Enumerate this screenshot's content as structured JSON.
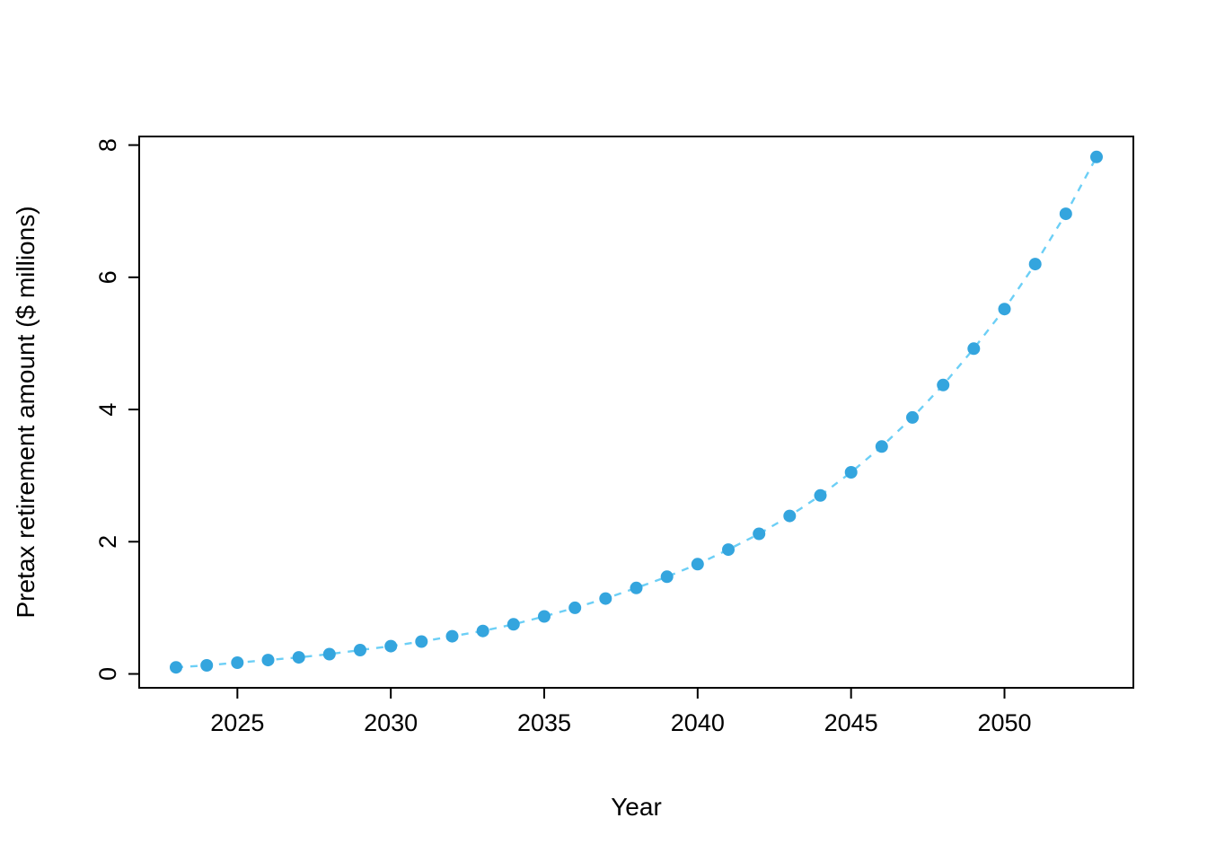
{
  "chart_data": {
    "type": "scatter",
    "title": "",
    "xlabel": "Year",
    "ylabel": "Pretax retirement amount ($ millions)",
    "x": [
      2023,
      2024,
      2025,
      2026,
      2027,
      2028,
      2029,
      2030,
      2031,
      2032,
      2033,
      2034,
      2035,
      2036,
      2037,
      2038,
      2039,
      2040,
      2041,
      2042,
      2043,
      2044,
      2045,
      2046,
      2047,
      2048,
      2049,
      2050,
      2051,
      2052,
      2053
    ],
    "y": [
      0.1,
      0.13,
      0.17,
      0.21,
      0.25,
      0.3,
      0.36,
      0.42,
      0.49,
      0.57,
      0.65,
      0.75,
      0.87,
      1.0,
      1.14,
      1.3,
      1.47,
      1.66,
      1.88,
      2.12,
      2.39,
      2.7,
      3.05,
      3.44,
      3.88,
      4.37,
      4.92,
      5.52,
      6.2,
      6.96,
      7.82
    ],
    "xticks": [
      2025,
      2030,
      2035,
      2040,
      2045,
      2050
    ],
    "yticks": [
      0,
      2,
      4,
      6,
      8
    ],
    "xlim": [
      2021.8,
      2054.2
    ],
    "ylim": [
      -0.21,
      8.13
    ],
    "grid": false,
    "legend": null,
    "line_style": "dashed",
    "point_color": "#34A5DE",
    "line_color": "#6CCFF6",
    "axis_color": "#000000",
    "background_color": "#ffffff"
  }
}
